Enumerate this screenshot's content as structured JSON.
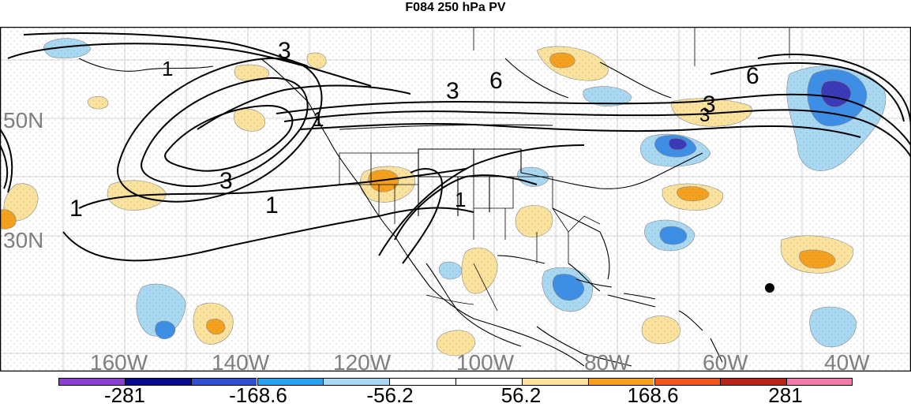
{
  "title": "F084 250 hPa PV",
  "map": {
    "lat_labels": [
      "50N",
      "30N"
    ],
    "lon_labels": [
      "160W",
      "140W",
      "120W",
      "100W",
      "80W",
      "60W",
      "40W"
    ],
    "contour_labels": [
      "3",
      "6",
      "1",
      "1",
      "3",
      "1",
      "3",
      "6",
      "3",
      "1",
      "1",
      "3"
    ],
    "colors": {
      "strong_negative": "#3a3ab8",
      "negative": "#3d8ee6",
      "weak_negative": "#a9d8f3",
      "weak_positive": "#fbe39e",
      "positive": "#f5a11e",
      "strong_positive": "#e0461a"
    }
  },
  "colorbar": {
    "labels": [
      "-281",
      "-168.6",
      "-56.2",
      "56.2",
      "168.6",
      "281"
    ],
    "colors": [
      "#8b3fcf",
      "#0a0a8c",
      "#2f4fd0",
      "#27a2ef",
      "#a9d8f3",
      "#ffffff",
      "#ffffff",
      "#fbe39e",
      "#f5a11e",
      "#f0561e",
      "#b8231c",
      "#f27aa8"
    ]
  }
}
